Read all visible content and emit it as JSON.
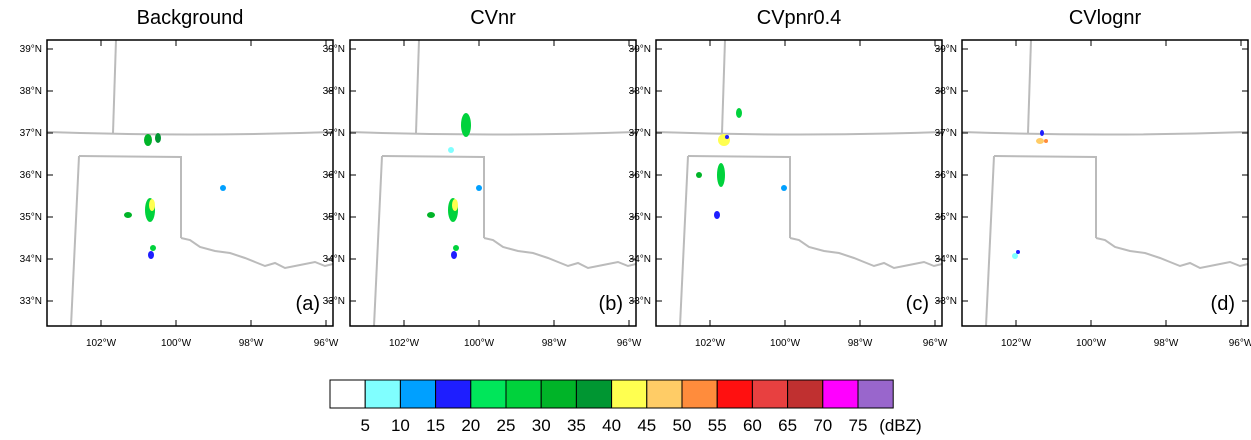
{
  "panels": [
    {
      "title": "Background",
      "label": "(a)"
    },
    {
      "title": "CVnr",
      "label": "(b)"
    },
    {
      "title": "CVpnr0.4",
      "label": "(c)"
    },
    {
      "title": "CVlognr",
      "label": "(d)"
    }
  ],
  "lat_ticks": [
    {
      "value": 39,
      "label": "39°N"
    },
    {
      "value": 38,
      "label": "38°N"
    },
    {
      "value": 37,
      "label": "37°N"
    },
    {
      "value": 36,
      "label": "36°N"
    },
    {
      "value": 35,
      "label": "35°N"
    },
    {
      "value": 34,
      "label": "34°N"
    },
    {
      "value": 33,
      "label": "33°N"
    }
  ],
  "lon_ticks": [
    {
      "value": -102,
      "label": "102°W"
    },
    {
      "value": -100,
      "label": "100°W"
    },
    {
      "value": -98,
      "label": "98°W"
    },
    {
      "value": -96,
      "label": "96°W"
    }
  ],
  "colorbar": {
    "colors": [
      "#ffffff",
      "#80ffff",
      "#00a0ff",
      "#1e1eff",
      "#00e65a",
      "#00d23c",
      "#00b428",
      "#009632",
      "#ffff50",
      "#ffcc66",
      "#ff8c3c",
      "#ff1010",
      "#e84040",
      "#c03030",
      "#ff00ff",
      "#9966cc"
    ],
    "levels": [
      5,
      10,
      15,
      20,
      25,
      30,
      35,
      40,
      45,
      50,
      55,
      60,
      65,
      70,
      75
    ],
    "unit": "(dBZ)"
  }
}
